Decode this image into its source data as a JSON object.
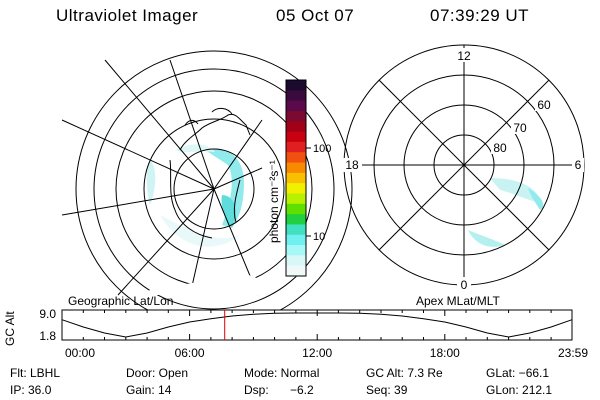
{
  "header": {
    "title": "Ultraviolet Imager",
    "date": "05 Oct 07",
    "time": "07:39:29 UT"
  },
  "panels": {
    "left_label": "Geographic Lat/Lon",
    "right_label": "Apex MLat/MLT"
  },
  "colorbar": {
    "unit_label": "photon cm⁻²s⁻¹",
    "ticks": [
      "100",
      "10"
    ],
    "colors": [
      "#1a0a2e",
      "#3a0a3e",
      "#5a0a4a",
      "#7a0a30",
      "#a00018",
      "#c80010",
      "#e02020",
      "#f05010",
      "#f88a00",
      "#f8c000",
      "#f0f000",
      "#b8f000",
      "#60e000",
      "#20d040",
      "#40e0c0",
      "#70f0f0",
      "#a8f8f8",
      "#d8f8f8",
      "#f0f8f8"
    ]
  },
  "polar": {
    "mlt_labels": [
      "12",
      "18",
      "6",
      "0"
    ],
    "mlat_labels": [
      "60",
      "70",
      "80"
    ]
  },
  "timeline": {
    "ylabel": "GC Alt",
    "y_ticks": [
      "9.0",
      "1.8"
    ],
    "x_ticks": [
      "00:00",
      "06:00",
      "12:00",
      "18:00",
      "23:59"
    ],
    "marker_color": "#e00000"
  },
  "info": {
    "r1": [
      "Flt: LBHL",
      "Door: Open",
      "Mode: Normal",
      "GC Alt: 7.3 Re",
      "GLat: −66.1"
    ],
    "r2": [
      "IP: 36.0",
      "Gain: 14",
      "Dsp:",
      "−6.2",
      "Seq: 39",
      "GLon: 212.1"
    ]
  },
  "chart_data": [
    {
      "type": "line",
      "title": "",
      "xlabel": "",
      "ylabel": "GC Alt",
      "x_range": [
        "00:00",
        "23:59"
      ],
      "ylim": [
        1.8,
        9.0
      ],
      "series": [
        {
          "x": [
            "00:00",
            "01:00",
            "02:00",
            "03:00",
            "04:00",
            "05:00",
            "06:00",
            "07:00",
            "08:00",
            "09:00",
            "10:00",
            "11:00",
            "12:00",
            "13:00",
            "14:00",
            "15:00",
            "16:00",
            "17:00",
            "18:00",
            "19:00",
            "20:00",
            "21:00",
            "22:00",
            "23:00",
            "23:59"
          ],
          "values": [
            7.0,
            4.8,
            3.0,
            1.8,
            3.0,
            4.8,
            6.3,
            7.3,
            8.1,
            8.6,
            8.9,
            9.0,
            9.0,
            9.0,
            8.9,
            8.6,
            8.1,
            7.3,
            6.3,
            4.8,
            3.0,
            1.8,
            3.0,
            4.8,
            7.0
          ]
        }
      ],
      "annotations": [
        {
          "type": "vline",
          "x": "07:39",
          "color": "#e00000"
        }
      ]
    }
  ]
}
